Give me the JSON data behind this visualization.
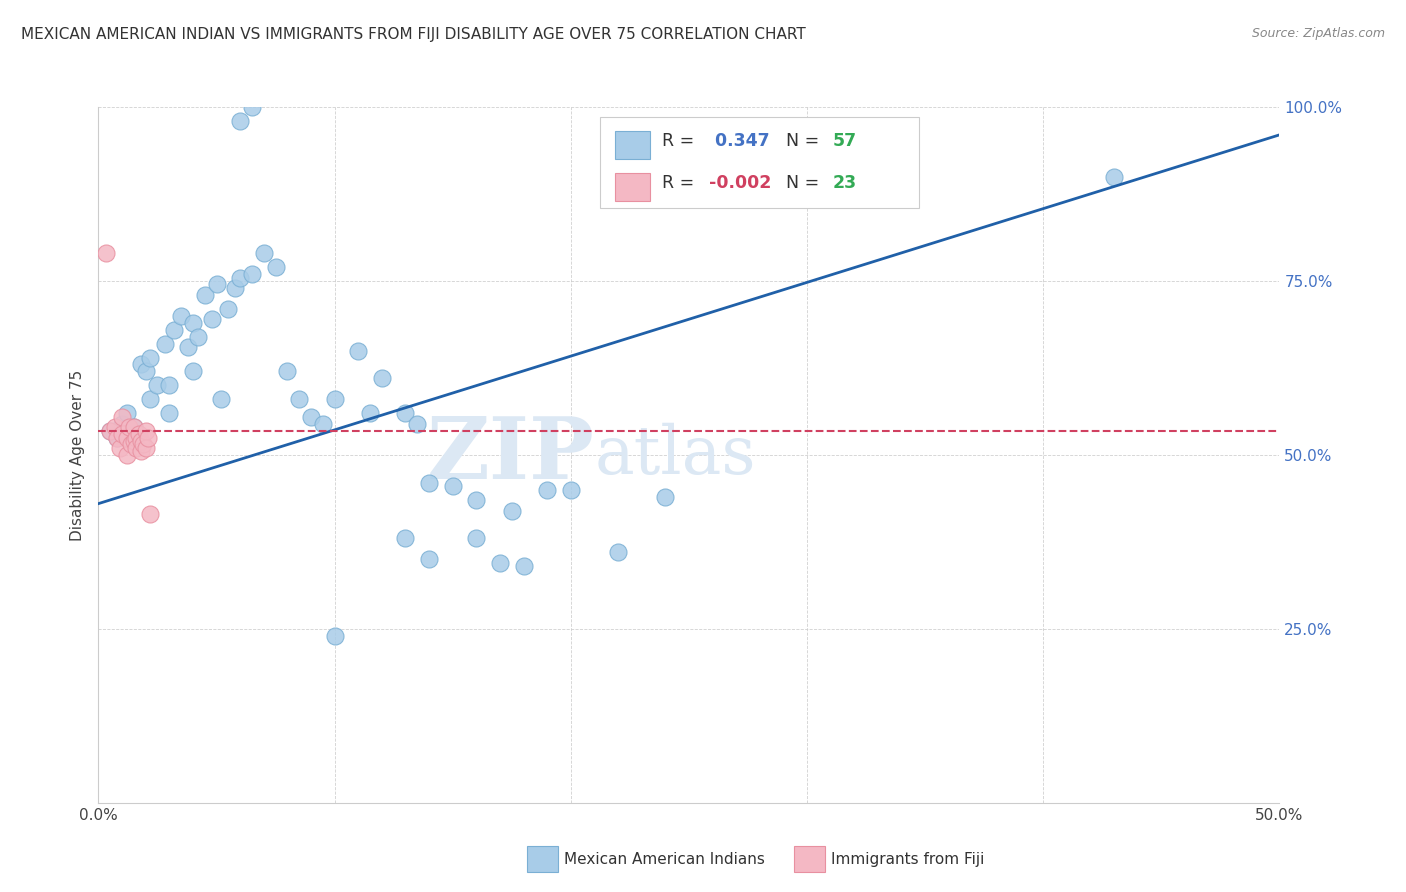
{
  "title": "MEXICAN AMERICAN INDIAN VS IMMIGRANTS FROM FIJI DISABILITY AGE OVER 75 CORRELATION CHART",
  "source": "Source: ZipAtlas.com",
  "ylabel": "Disability Age Over 75",
  "xlim": [
    0.0,
    0.5
  ],
  "ylim": [
    0.0,
    1.0
  ],
  "xticks": [
    0.0,
    0.1,
    0.2,
    0.3,
    0.4,
    0.5
  ],
  "xticklabels": [
    "0.0%",
    "",
    "",
    "",
    "",
    "50.0%"
  ],
  "yticks_right": [
    0.0,
    0.25,
    0.5,
    0.75,
    1.0
  ],
  "ytick_labels_right": [
    "",
    "25.0%",
    "50.0%",
    "75.0%",
    "100.0%"
  ],
  "blue_scatter_x": [
    0.005,
    0.008,
    0.01,
    0.012,
    0.015,
    0.015,
    0.018,
    0.02,
    0.022,
    0.022,
    0.025,
    0.028,
    0.03,
    0.03,
    0.032,
    0.035,
    0.038,
    0.04,
    0.04,
    0.042,
    0.045,
    0.048,
    0.05,
    0.052,
    0.055,
    0.058,
    0.06,
    0.065,
    0.07,
    0.075,
    0.08,
    0.085,
    0.09,
    0.095,
    0.1,
    0.11,
    0.115,
    0.12,
    0.13,
    0.135,
    0.14,
    0.15,
    0.16,
    0.17,
    0.175,
    0.18,
    0.19,
    0.2,
    0.22,
    0.24,
    0.13,
    0.14,
    0.16,
    0.06,
    0.065,
    0.43,
    0.1
  ],
  "blue_scatter_y": [
    0.535,
    0.525,
    0.545,
    0.56,
    0.54,
    0.52,
    0.63,
    0.62,
    0.58,
    0.64,
    0.6,
    0.66,
    0.56,
    0.6,
    0.68,
    0.7,
    0.655,
    0.69,
    0.62,
    0.67,
    0.73,
    0.695,
    0.745,
    0.58,
    0.71,
    0.74,
    0.755,
    0.76,
    0.79,
    0.77,
    0.62,
    0.58,
    0.555,
    0.545,
    0.58,
    0.65,
    0.56,
    0.61,
    0.56,
    0.545,
    0.46,
    0.455,
    0.435,
    0.345,
    0.42,
    0.34,
    0.45,
    0.45,
    0.36,
    0.44,
    0.38,
    0.35,
    0.38,
    0.98,
    1.0,
    0.9,
    0.24
  ],
  "pink_scatter_x": [
    0.003,
    0.005,
    0.007,
    0.008,
    0.009,
    0.01,
    0.01,
    0.012,
    0.012,
    0.013,
    0.014,
    0.015,
    0.015,
    0.016,
    0.016,
    0.017,
    0.018,
    0.018,
    0.019,
    0.02,
    0.02,
    0.021,
    0.022
  ],
  "pink_scatter_y": [
    0.79,
    0.535,
    0.54,
    0.525,
    0.51,
    0.555,
    0.53,
    0.5,
    0.525,
    0.54,
    0.515,
    0.54,
    0.52,
    0.525,
    0.51,
    0.53,
    0.52,
    0.505,
    0.515,
    0.535,
    0.51,
    0.525,
    0.415
  ],
  "blue_line_x": [
    0.0,
    0.5
  ],
  "blue_line_y": [
    0.43,
    0.96
  ],
  "pink_line_x": [
    0.0,
    0.5
  ],
  "pink_line_y": [
    0.535,
    0.535
  ],
  "R_blue": "0.347",
  "N_blue": "57",
  "R_pink": "-0.002",
  "N_pink": "23",
  "blue_color": "#a8cce8",
  "pink_color": "#f4b8c4",
  "blue_edge_color": "#7aafd4",
  "pink_edge_color": "#e890a0",
  "blue_line_color": "#2060a8",
  "pink_line_color": "#d04060",
  "title_color": "#333333",
  "axis_label_color": "#444444",
  "right_tick_color": "#4472c4",
  "watermark_color": "#dce8f4",
  "background_color": "#ffffff",
  "legend_blue_R_color": "#4472c4",
  "legend_pink_R_color": "#d04060",
  "legend_N_color": "#33aa55",
  "grid_color": "#cccccc",
  "bottom_legend_blue_text": "Mexican American Indians",
  "bottom_legend_pink_text": "Immigrants from Fiji"
}
